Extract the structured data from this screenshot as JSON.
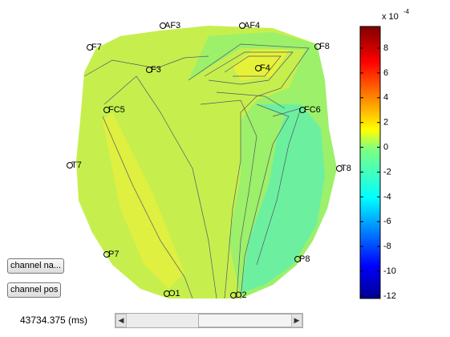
{
  "colorbar": {
    "multiplier": "x 10",
    "exponent": "-4",
    "range": [
      -12.2,
      9.75
    ],
    "ticks": [
      8,
      6,
      4,
      2,
      0,
      -2,
      -4,
      -6,
      -8,
      -10,
      -12
    ]
  },
  "channels": [
    {
      "label": "AF3"
    },
    {
      "label": "AF4"
    },
    {
      "label": "F7"
    },
    {
      "label": "F8"
    },
    {
      "label": "F3"
    },
    {
      "label": "F4"
    },
    {
      "label": "FC5"
    },
    {
      "label": "FC6"
    },
    {
      "label": "T7"
    },
    {
      "label": "T8"
    },
    {
      "label": "P7"
    },
    {
      "label": "P8"
    },
    {
      "label": "O1"
    },
    {
      "label": "O2"
    }
  ],
  "buttons": [
    "channel na...",
    "channel pos"
  ],
  "time_label": "43734.375 (ms)"
}
